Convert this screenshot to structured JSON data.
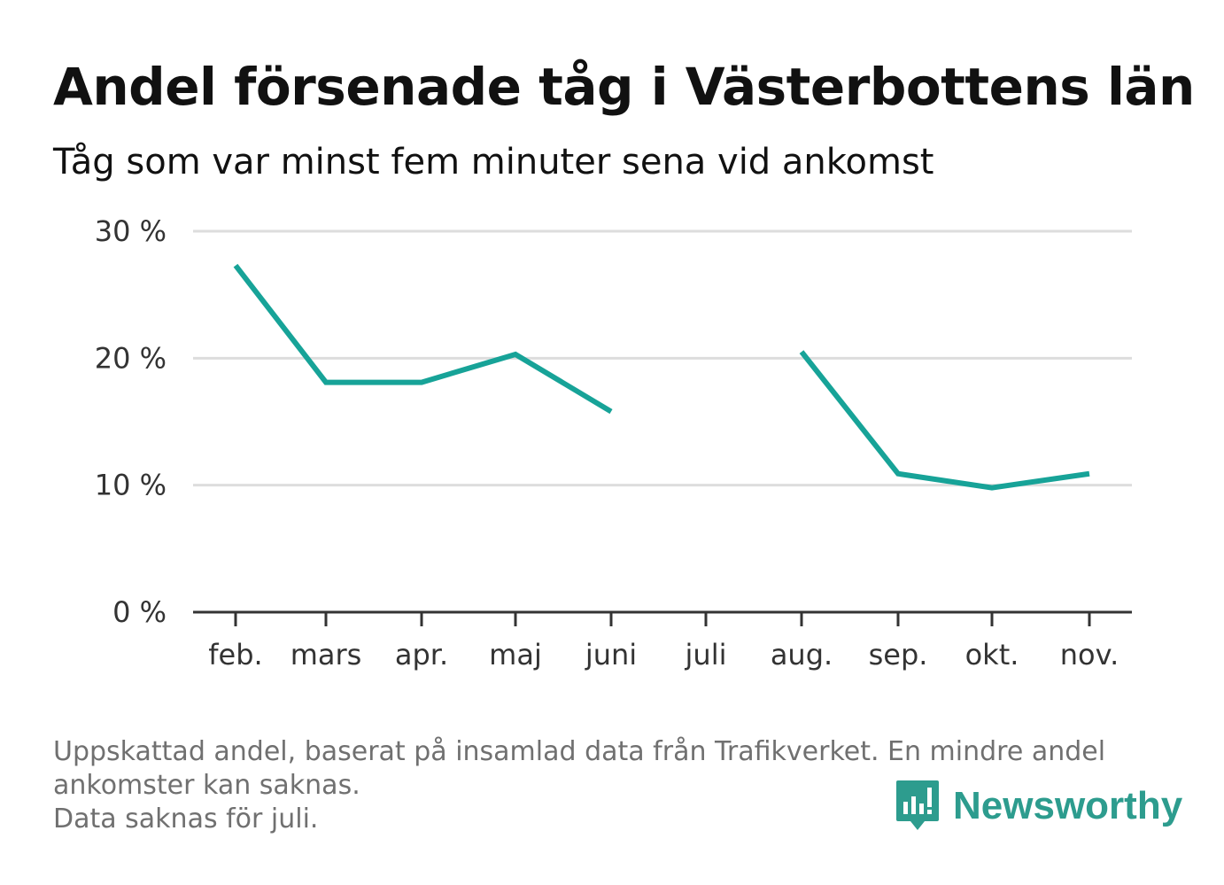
{
  "header": {
    "title": "Andel försenade tåg i Västerbottens län",
    "subtitle": "Tåg som var minst fem minuter sena vid ankomst"
  },
  "chart_data": {
    "type": "line",
    "title": "Andel försenade tåg i Västerbottens län",
    "subtitle": "Tåg som var minst fem minuter sena vid ankomst",
    "xlabel": "",
    "ylabel": "",
    "categories": [
      "feb.",
      "mars",
      "apr.",
      "maj",
      "juni",
      "juli",
      "aug.",
      "sep.",
      "okt.",
      "nov."
    ],
    "series": [
      {
        "values": [
          27.3,
          18.1,
          18.1,
          20.3,
          15.8,
          null,
          20.5,
          10.9,
          9.8,
          10.9
        ]
      }
    ],
    "ylim": [
      0,
      30
    ],
    "yticks": [
      0,
      10,
      20,
      30
    ],
    "ytick_labels": [
      "0 %",
      "10 %",
      "20 %",
      "30 %"
    ],
    "grid": true,
    "line_color": "#17a398",
    "grid_color": "#dddddd",
    "axis_color": "#333333"
  },
  "footnote": {
    "line1": "Uppskattad andel, baserat på insamlad data från Trafikverket. En mindre andel",
    "line2": "ankomster kan saknas.",
    "line3": "Data saknas för juli."
  },
  "brand": {
    "name": "Newsworthy",
    "icon": "newsworthy-logo-icon",
    "color": "#2d9c8e"
  }
}
